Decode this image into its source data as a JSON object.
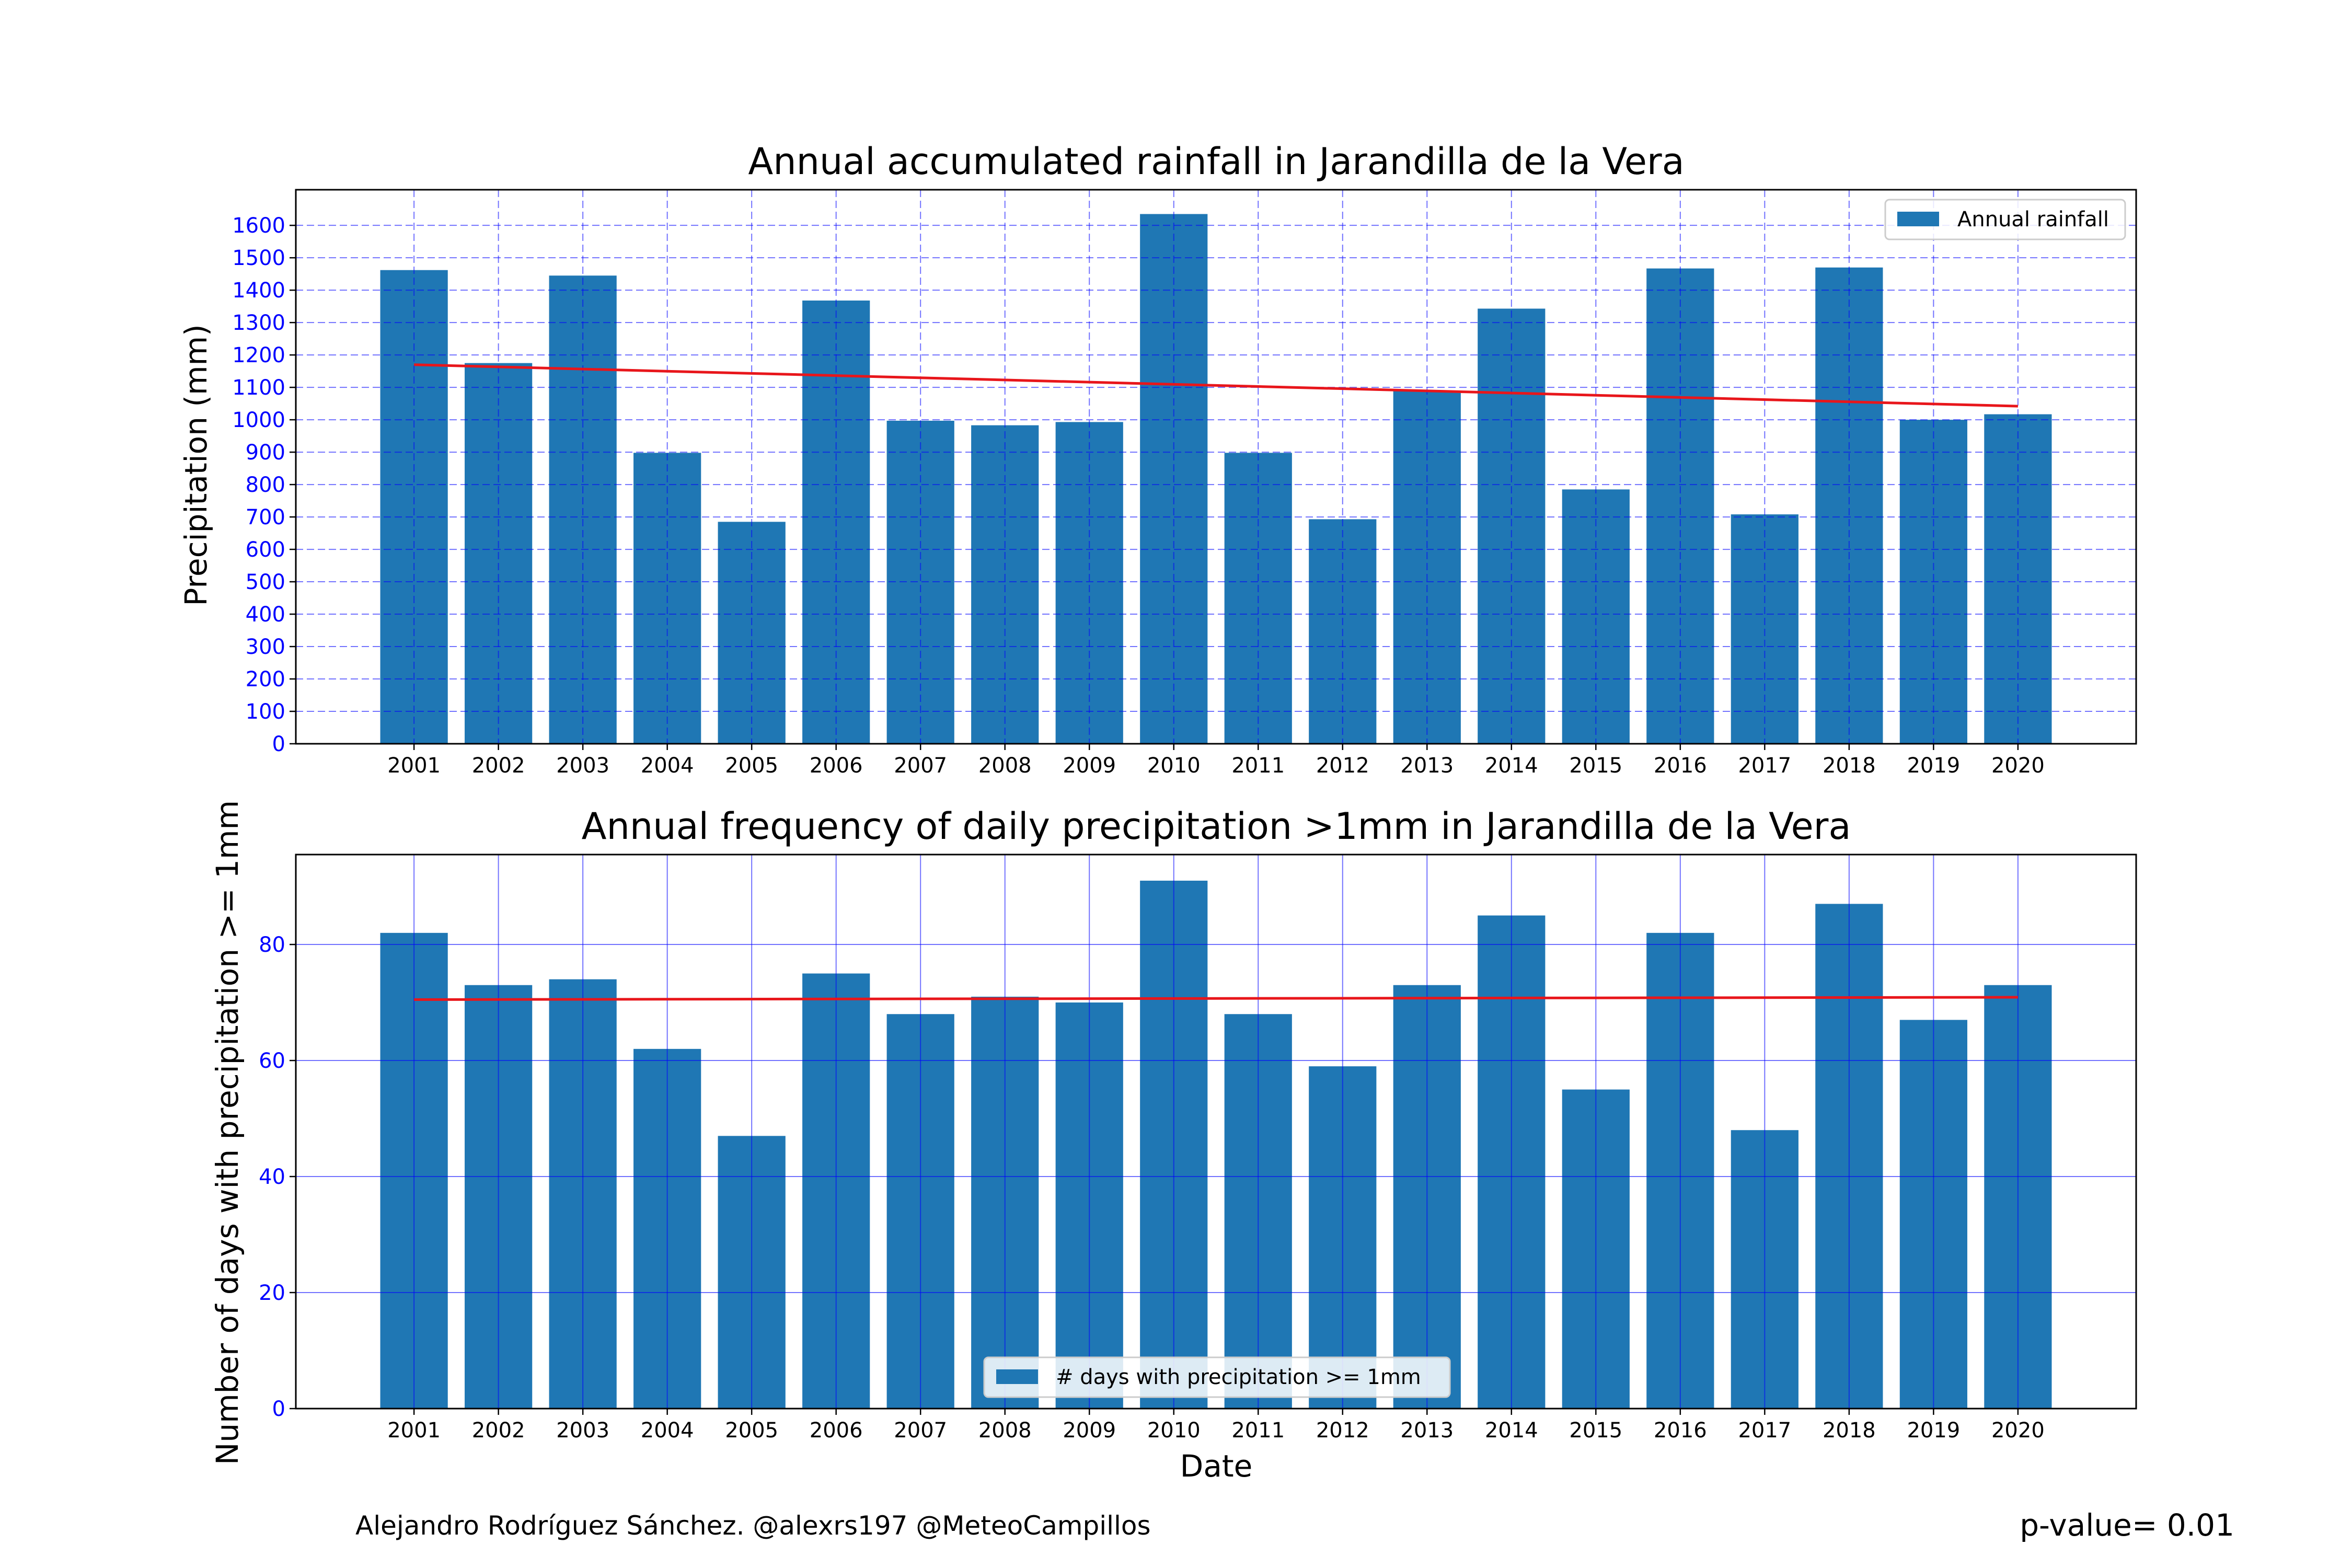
{
  "chart_data": [
    {
      "type": "bar",
      "title": "Annual accumulated rainfall in Jarandilla de la Vera",
      "xlabel": "",
      "ylabel": "Precipitation (mm)",
      "categories": [
        "2001",
        "2002",
        "2003",
        "2004",
        "2005",
        "2006",
        "2007",
        "2008",
        "2009",
        "2010",
        "2011",
        "2012",
        "2013",
        "2014",
        "2015",
        "2016",
        "2017",
        "2018",
        "2019",
        "2020"
      ],
      "series": [
        {
          "name": "Annual rainfall",
          "color": "#1f77b4",
          "values": [
            1462,
            1175,
            1445,
            898,
            685,
            1368,
            997,
            983,
            993,
            1635,
            898,
            693,
            1090,
            1343,
            785,
            1467,
            708,
            1470,
            1000,
            1017
          ]
        }
      ],
      "trend": {
        "color": "#e8161b",
        "start": 1170,
        "end": 1042
      },
      "ylim": [
        0,
        1710
      ],
      "yticks": [
        0,
        100,
        200,
        300,
        400,
        500,
        600,
        700,
        800,
        900,
        1000,
        1100,
        1200,
        1300,
        1400,
        1500,
        1600
      ],
      "grid": {
        "style": "dashed",
        "color": "#0000ff"
      },
      "legend": "top-right"
    },
    {
      "type": "bar",
      "title": "Annual frequency of daily precipitation >1mm in Jarandilla de la Vera",
      "xlabel": "Date",
      "ylabel": "Number of days with precipitation >= 1mm",
      "categories": [
        "2001",
        "2002",
        "2003",
        "2004",
        "2005",
        "2006",
        "2007",
        "2008",
        "2009",
        "2010",
        "2011",
        "2012",
        "2013",
        "2014",
        "2015",
        "2016",
        "2017",
        "2018",
        "2019",
        "2020"
      ],
      "series": [
        {
          "name": "# days with precipitation >= 1mm",
          "color": "#1f77b4",
          "values": [
            82,
            73,
            74,
            62,
            47,
            75,
            68,
            71,
            70,
            91,
            68,
            59,
            73,
            85,
            55,
            82,
            48,
            87,
            67,
            73
          ]
        }
      ],
      "trend": {
        "color": "#e8161b",
        "start": 70.5,
        "end": 70.9
      },
      "ylim": [
        0,
        95.5
      ],
      "yticks": [
        0,
        20,
        40,
        60,
        80
      ],
      "grid": {
        "style": "solid",
        "color": "#0000ff"
      },
      "legend": "bottom-center"
    }
  ],
  "footer": {
    "credit": "Alejandro Rodríguez Sánchez. @alexrs197 @MeteoCampillos",
    "pvalue": "p-value= 0.01"
  }
}
